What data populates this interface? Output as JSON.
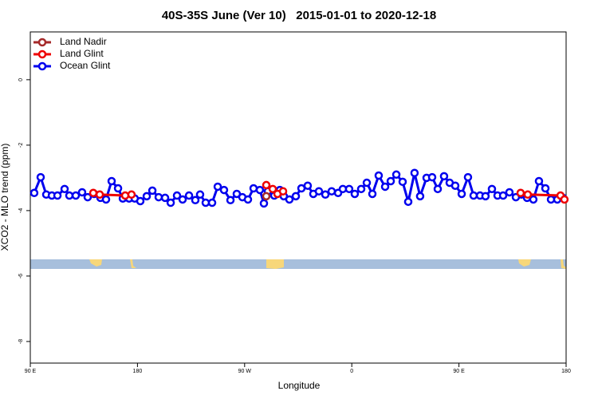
{
  "chart_data": {
    "type": "line",
    "title": "40S-35S June (Ver 10)   2015-01-01 to 2020-12-18",
    "x_label": "Longitude",
    "y_label": "XCO2 - MLO trend (ppm)",
    "xlim": [
      90,
      540
    ],
    "xticks": [
      {
        "value": 90,
        "label": "90 E"
      },
      {
        "value": 180,
        "label": "180"
      },
      {
        "value": 270,
        "label": "90 W"
      },
      {
        "value": 360,
        "label": "0"
      },
      {
        "value": 450,
        "label": "90 E"
      },
      {
        "value": 540,
        "label": "180"
      }
    ],
    "ylim": [
      -8.66,
      1.46
    ],
    "yticks": [
      0,
      -2,
      -4,
      -6,
      -8
    ],
    "legend": "top-left",
    "series": [
      {
        "name": "Land Nadir",
        "color": "#a52a2a",
        "x": [
          288.2
        ],
        "values": [
          -3.56
        ]
      },
      {
        "name": "Land Glint",
        "color": "#ee0000",
        "x": [
          142.9,
          148.3,
          169.7,
          175.0,
          null,
          288.2,
          293.6,
          297.6,
          302.3,
          null,
          501.8,
          507.8,
          535.3,
          538.6
        ],
        "values": [
          -3.46,
          -3.51,
          -3.54,
          -3.51,
          null,
          -3.22,
          -3.34,
          -3.49,
          -3.41,
          null,
          -3.46,
          -3.51,
          -3.54,
          -3.66
        ]
      },
      {
        "name": "Ocean Glint",
        "color": "#0000ee",
        "x": [
          93.3,
          98.7,
          103.4,
          108.1,
          112.8,
          118.8,
          122.8,
          128.2,
          133.5,
          138.2,
          143.6,
          148.9,
          153.6,
          158.3,
          163.7,
          167.7,
          173.0,
          177.7,
          182.4,
          187.8,
          192.5,
          197.8,
          203.2,
          207.9,
          213.2,
          217.9,
          223.3,
          228.6,
          232.6,
          237.3,
          242.7,
          247.4,
          252.7,
          258.1,
          263.4,
          268.1,
          272.8,
          277.5,
          282.8,
          286.2,
          289.5,
          294.9,
          299.6,
          302.9,
          307.6,
          313.0,
          317.7,
          323.0,
          327.7,
          332.4,
          337.8,
          343.1,
          348.5,
          352.5,
          357.8,
          362.5,
          367.9,
          372.6,
          377.3,
          382.6,
          388.0,
          392.7,
          397.4,
          402.7,
          407.4,
          412.7,
          417.4,
          422.8,
          427.5,
          432.2,
          437.5,
          442.2,
          446.9,
          452.3,
          457.6,
          462.3,
          467.7,
          472.3,
          477.7,
          482.4,
          487.1,
          492.4,
          497.8,
          502.5,
          507.2,
          512.5,
          517.2,
          522.6,
          527.3,
          532.6,
          537.3
        ],
        "values": [
          -3.46,
          -2.98,
          -3.51,
          -3.54,
          -3.54,
          -3.34,
          -3.54,
          -3.54,
          -3.44,
          -3.59,
          -3.49,
          -3.61,
          -3.66,
          -3.1,
          -3.32,
          -3.63,
          -3.63,
          -3.63,
          -3.71,
          -3.56,
          -3.39,
          -3.59,
          -3.61,
          -3.76,
          -3.54,
          -3.66,
          -3.54,
          -3.68,
          -3.51,
          -3.76,
          -3.76,
          -3.27,
          -3.37,
          -3.68,
          -3.49,
          -3.59,
          -3.66,
          -3.32,
          -3.37,
          -3.78,
          -3.41,
          -3.54,
          -3.37,
          -3.56,
          -3.66,
          -3.56,
          -3.32,
          -3.24,
          -3.49,
          -3.41,
          -3.51,
          -3.41,
          -3.46,
          -3.34,
          -3.34,
          -3.49,
          -3.34,
          -3.15,
          -3.49,
          -2.93,
          -3.27,
          -3.1,
          -2.9,
          -3.12,
          -3.73,
          -2.85,
          -3.56,
          -3.0,
          -2.98,
          -3.34,
          -2.95,
          -3.15,
          -3.24,
          -3.49,
          -2.98,
          -3.54,
          -3.54,
          -3.56,
          -3.34,
          -3.54,
          -3.54,
          -3.44,
          -3.59,
          -3.51,
          -3.61,
          -3.66,
          -3.1,
          -3.32,
          -3.66,
          -3.66,
          -3.61
        ]
      }
    ]
  }
}
